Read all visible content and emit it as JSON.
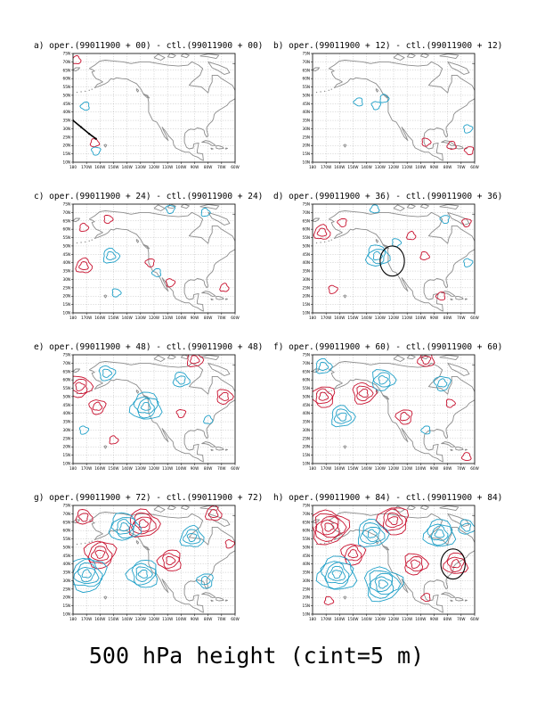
{
  "figure": {
    "caption": "500 hPa height (cint=5 m)",
    "colors": {
      "positive": "#c8102e",
      "negative": "#1fa0c8",
      "land": "#8c8c8c",
      "frame": "#000000",
      "circle": "#000000"
    }
  },
  "chart_data": [
    {
      "type": "contour-map",
      "panel": "a",
      "title": "a) oper.(99011900 + 00) - ctl.(99011900 + 00)",
      "x_ticks": [
        "180",
        "170W",
        "160W",
        "150W",
        "140W",
        "130W",
        "120W",
        "110W",
        "100W",
        "90W",
        "80W",
        "70W",
        "60W"
      ],
      "y_ticks": [
        "10N",
        "15N",
        "20N",
        "25N",
        "30N",
        "35N",
        "40N",
        "45N",
        "50N",
        "55N",
        "60N",
        "65N",
        "70N",
        "75N"
      ],
      "lon_range": [
        -180,
        -60
      ],
      "lat_range": [
        10,
        75
      ],
      "grid": true,
      "contour_interval_m": 5,
      "features": [
        {
          "sign": "pos",
          "lon": -177.5,
          "lat": 71,
          "levels": 1
        },
        {
          "sign": "pos",
          "lon": -164,
          "lat": 21.5,
          "levels": 1
        },
        {
          "sign": "neg",
          "lon": -171,
          "lat": 43.5,
          "levels": 1
        },
        {
          "sign": "neg",
          "lon": -163,
          "lat": 16.8,
          "levels": 1
        }
      ],
      "track": [
        [
          -180,
          35
        ],
        [
          -174,
          31
        ],
        [
          -168,
          27
        ],
        [
          -163,
          24
        ]
      ]
    },
    {
      "type": "contour-map",
      "panel": "b",
      "title": "b) oper.(99011900 + 12) - ctl.(99011900 + 12)",
      "x_ticks": [
        "180",
        "170W",
        "160W",
        "150W",
        "140W",
        "130W",
        "120W",
        "110W",
        "100W",
        "90W",
        "80W",
        "70W",
        "60W"
      ],
      "y_ticks": [
        "10N",
        "15N",
        "20N",
        "25N",
        "30N",
        "35N",
        "40N",
        "45N",
        "50N",
        "55N",
        "60N",
        "65N",
        "70N",
        "75N"
      ],
      "lon_range": [
        -180,
        -60
      ],
      "lat_range": [
        10,
        75
      ],
      "grid": true,
      "contour_interval_m": 5,
      "features": [
        {
          "sign": "neg",
          "lon": -146,
          "lat": 46,
          "levels": 1
        },
        {
          "sign": "neg",
          "lon": -133,
          "lat": 44,
          "levels": 1
        },
        {
          "sign": "neg",
          "lon": -127,
          "lat": 48,
          "levels": 1
        },
        {
          "sign": "pos",
          "lon": -96,
          "lat": 22,
          "levels": 1
        },
        {
          "sign": "pos",
          "lon": -77,
          "lat": 20,
          "levels": 1
        },
        {
          "sign": "pos",
          "lon": -64,
          "lat": 17,
          "levels": 1
        },
        {
          "sign": "neg",
          "lon": -65,
          "lat": 30,
          "levels": 1
        }
      ]
    },
    {
      "type": "contour-map",
      "panel": "c",
      "title": "c) oper.(99011900 + 24) - ctl.(99011900 + 24)",
      "x_ticks": [
        "180",
        "170W",
        "160W",
        "150W",
        "140W",
        "130W",
        "120W",
        "110W",
        "100W",
        "90W",
        "80W",
        "70W",
        "60W"
      ],
      "y_ticks": [
        "10N",
        "15N",
        "20N",
        "25N",
        "30N",
        "35N",
        "40N",
        "45N",
        "50N",
        "55N",
        "60N",
        "65N",
        "70N",
        "75N"
      ],
      "lon_range": [
        -180,
        -60
      ],
      "lat_range": [
        10,
        75
      ],
      "grid": true,
      "contour_interval_m": 5,
      "features": [
        {
          "sign": "pos",
          "lon": -172,
          "lat": 61,
          "levels": 1
        },
        {
          "sign": "pos",
          "lon": -154,
          "lat": 66,
          "levels": 1
        },
        {
          "sign": "pos",
          "lon": -172,
          "lat": 38,
          "levels": 2
        },
        {
          "sign": "pos",
          "lon": -123,
          "lat": 40,
          "levels": 1
        },
        {
          "sign": "pos",
          "lon": -108,
          "lat": 28,
          "levels": 1
        },
        {
          "sign": "pos",
          "lon": -68,
          "lat": 25,
          "levels": 1
        },
        {
          "sign": "neg",
          "lon": -152,
          "lat": 44,
          "levels": 2
        },
        {
          "sign": "neg",
          "lon": -118,
          "lat": 34,
          "levels": 1
        },
        {
          "sign": "neg",
          "lon": -108,
          "lat": 72,
          "levels": 1
        },
        {
          "sign": "neg",
          "lon": -82,
          "lat": 70,
          "levels": 1
        },
        {
          "sign": "neg",
          "lon": -148,
          "lat": 22,
          "levels": 1
        }
      ]
    },
    {
      "type": "contour-map",
      "panel": "d",
      "title": "d) oper.(99011900 + 36) - ctl.(99011900 + 36)",
      "x_ticks": [
        "180",
        "170W",
        "160W",
        "150W",
        "140W",
        "130W",
        "120W",
        "110W",
        "100W",
        "90W",
        "80W",
        "70W",
        "60W"
      ],
      "y_ticks": [
        "10N",
        "15N",
        "20N",
        "25N",
        "30N",
        "35N",
        "40N",
        "45N",
        "50N",
        "55N",
        "60N",
        "65N",
        "70N",
        "75N"
      ],
      "lon_range": [
        -180,
        -60
      ],
      "lat_range": [
        10,
        75
      ],
      "grid": true,
      "contour_interval_m": 5,
      "features": [
        {
          "sign": "pos",
          "lon": -173,
          "lat": 58,
          "levels": 2
        },
        {
          "sign": "pos",
          "lon": -158,
          "lat": 64,
          "levels": 1
        },
        {
          "sign": "pos",
          "lon": -165,
          "lat": 24,
          "levels": 1
        },
        {
          "sign": "pos",
          "lon": -107,
          "lat": 56,
          "levels": 1
        },
        {
          "sign": "pos",
          "lon": -97,
          "lat": 44,
          "levels": 1
        },
        {
          "sign": "pos",
          "lon": -85,
          "lat": 20,
          "levels": 1
        },
        {
          "sign": "pos",
          "lon": -66,
          "lat": 64,
          "levels": 1
        },
        {
          "sign": "neg",
          "lon": -132,
          "lat": 44,
          "levels": 3
        },
        {
          "sign": "neg",
          "lon": -118,
          "lat": 52,
          "levels": 1
        },
        {
          "sign": "neg",
          "lon": -134,
          "lat": 72,
          "levels": 1
        },
        {
          "sign": "neg",
          "lon": -82,
          "lat": 66,
          "levels": 1
        },
        {
          "sign": "neg",
          "lon": -65,
          "lat": 40,
          "levels": 1
        }
      ],
      "circle": {
        "lon": -121,
        "lat": 41,
        "radius_deg": 9
      }
    },
    {
      "type": "contour-map",
      "panel": "e",
      "title": "e) oper.(99011900 + 48) - ctl.(99011900 + 48)",
      "x_ticks": [
        "180",
        "170W",
        "160W",
        "150W",
        "140W",
        "130W",
        "120W",
        "110W",
        "100W",
        "90W",
        "80W",
        "70W",
        "60W"
      ],
      "y_ticks": [
        "10N",
        "15N",
        "20N",
        "25N",
        "30N",
        "35N",
        "40N",
        "45N",
        "50N",
        "55N",
        "60N",
        "65N",
        "70N",
        "75N"
      ],
      "lon_range": [
        -180,
        -60
      ],
      "lat_range": [
        10,
        75
      ],
      "grid": true,
      "contour_interval_m": 5,
      "features": [
        {
          "sign": "pos",
          "lon": -175,
          "lat": 56,
          "levels": 3
        },
        {
          "sign": "pos",
          "lon": -162,
          "lat": 44,
          "levels": 2
        },
        {
          "sign": "pos",
          "lon": -90,
          "lat": 72,
          "levels": 2
        },
        {
          "sign": "pos",
          "lon": -68,
          "lat": 50,
          "levels": 2
        },
        {
          "sign": "pos",
          "lon": -100,
          "lat": 40,
          "levels": 1
        },
        {
          "sign": "pos",
          "lon": -150,
          "lat": 24,
          "levels": 1
        },
        {
          "sign": "neg",
          "lon": -155,
          "lat": 64,
          "levels": 2
        },
        {
          "sign": "neg",
          "lon": -126,
          "lat": 44,
          "levels": 4
        },
        {
          "sign": "neg",
          "lon": -100,
          "lat": 60,
          "levels": 2
        },
        {
          "sign": "neg",
          "lon": -172,
          "lat": 30,
          "levels": 1
        },
        {
          "sign": "neg",
          "lon": -80,
          "lat": 36,
          "levels": 1
        }
      ]
    },
    {
      "type": "contour-map",
      "panel": "f",
      "title": "f) oper.(99011900 + 60) - ctl.(99011900 + 60)",
      "x_ticks": [
        "180",
        "170W",
        "160W",
        "150W",
        "140W",
        "130W",
        "120W",
        "110W",
        "100W",
        "90W",
        "80W",
        "70W",
        "60W"
      ],
      "y_ticks": [
        "10N",
        "15N",
        "20N",
        "25N",
        "30N",
        "35N",
        "40N",
        "45N",
        "50N",
        "55N",
        "60N",
        "65N",
        "70N",
        "75N"
      ],
      "lon_range": [
        -180,
        -60
      ],
      "lat_range": [
        10,
        75
      ],
      "grid": true,
      "contour_interval_m": 5,
      "features": [
        {
          "sign": "pos",
          "lon": -172,
          "lat": 50,
          "levels": 3
        },
        {
          "sign": "pos",
          "lon": -142,
          "lat": 52,
          "levels": 3
        },
        {
          "sign": "pos",
          "lon": -96,
          "lat": 72,
          "levels": 2
        },
        {
          "sign": "pos",
          "lon": -112,
          "lat": 38,
          "levels": 2
        },
        {
          "sign": "pos",
          "lon": -78,
          "lat": 46,
          "levels": 1
        },
        {
          "sign": "pos",
          "lon": -66,
          "lat": 14,
          "levels": 1
        },
        {
          "sign": "neg",
          "lon": -158,
          "lat": 38,
          "levels": 3
        },
        {
          "sign": "neg",
          "lon": -128,
          "lat": 60,
          "levels": 3
        },
        {
          "sign": "neg",
          "lon": -84,
          "lat": 58,
          "levels": 2
        },
        {
          "sign": "neg",
          "lon": -172,
          "lat": 68,
          "levels": 2
        },
        {
          "sign": "neg",
          "lon": -96,
          "lat": 30,
          "levels": 1
        }
      ]
    },
    {
      "type": "contour-map",
      "panel": "g",
      "title": "g) oper.(99011900 + 72) - ctl.(99011900 + 72)",
      "x_ticks": [
        "180",
        "170W",
        "160W",
        "150W",
        "140W",
        "130W",
        "120W",
        "110W",
        "100W",
        "90W",
        "80W",
        "70W",
        "60W"
      ],
      "y_ticks": [
        "10N",
        "15N",
        "20N",
        "25N",
        "30N",
        "35N",
        "40N",
        "45N",
        "50N",
        "55N",
        "60N",
        "65N",
        "70N",
        "75N"
      ],
      "lon_range": [
        -180,
        -60
      ],
      "lat_range": [
        10,
        75
      ],
      "grid": true,
      "contour_interval_m": 5,
      "features": [
        {
          "sign": "pos",
          "lon": -160,
          "lat": 46,
          "levels": 4
        },
        {
          "sign": "pos",
          "lon": -128,
          "lat": 64,
          "levels": 4
        },
        {
          "sign": "pos",
          "lon": -108,
          "lat": 42,
          "levels": 3
        },
        {
          "sign": "pos",
          "lon": -76,
          "lat": 70,
          "levels": 2
        },
        {
          "sign": "pos",
          "lon": -172,
          "lat": 68,
          "levels": 2
        },
        {
          "sign": "pos",
          "lon": -64,
          "lat": 52,
          "levels": 1
        },
        {
          "sign": "neg",
          "lon": -170,
          "lat": 34,
          "levels": 5
        },
        {
          "sign": "neg",
          "lon": -142,
          "lat": 62,
          "levels": 4
        },
        {
          "sign": "neg",
          "lon": -128,
          "lat": 34,
          "levels": 4
        },
        {
          "sign": "neg",
          "lon": -92,
          "lat": 56,
          "levels": 3
        },
        {
          "sign": "neg",
          "lon": -82,
          "lat": 30,
          "levels": 2
        }
      ]
    },
    {
      "type": "contour-map",
      "panel": "h",
      "title": "h) oper.(99011900 + 84) - ctl.(99011900 + 84)",
      "x_ticks": [
        "180",
        "170W",
        "160W",
        "150W",
        "140W",
        "130W",
        "120W",
        "110W",
        "100W",
        "90W",
        "80W",
        "70W",
        "60W"
      ],
      "y_ticks": [
        "10N",
        "15N",
        "20N",
        "25N",
        "30N",
        "35N",
        "40N",
        "45N",
        "50N",
        "55N",
        "60N",
        "65N",
        "70N",
        "75N"
      ],
      "lon_range": [
        -180,
        -60
      ],
      "lat_range": [
        10,
        75
      ],
      "grid": true,
      "contour_interval_m": 5,
      "features": [
        {
          "sign": "pos",
          "lon": -168,
          "lat": 62,
          "levels": 5
        },
        {
          "sign": "pos",
          "lon": -150,
          "lat": 46,
          "levels": 3
        },
        {
          "sign": "pos",
          "lon": -120,
          "lat": 66,
          "levels": 4
        },
        {
          "sign": "pos",
          "lon": -104,
          "lat": 40,
          "levels": 3
        },
        {
          "sign": "pos",
          "lon": -74,
          "lat": 40,
          "levels": 3
        },
        {
          "sign": "pos",
          "lon": -168,
          "lat": 18,
          "levels": 1
        },
        {
          "sign": "pos",
          "lon": -96,
          "lat": 20,
          "levels": 1
        },
        {
          "sign": "neg",
          "lon": -162,
          "lat": 34,
          "levels": 5
        },
        {
          "sign": "neg",
          "lon": -136,
          "lat": 58,
          "levels": 4
        },
        {
          "sign": "neg",
          "lon": -128,
          "lat": 28,
          "levels": 5
        },
        {
          "sign": "neg",
          "lon": -86,
          "lat": 58,
          "levels": 4
        },
        {
          "sign": "neg",
          "lon": -66,
          "lat": 62,
          "levels": 2
        }
      ],
      "circle": {
        "lon": -76,
        "lat": 40,
        "radius_deg": 9
      }
    }
  ]
}
